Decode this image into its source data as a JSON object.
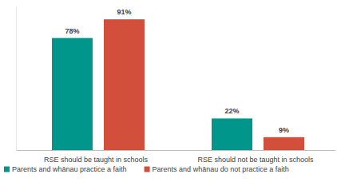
{
  "chart_data": {
    "type": "bar",
    "categories": [
      "RSE should be taught in schools",
      "RSE should not be taught in schools"
    ],
    "series": [
      {
        "name": "Parents and whānau practice a faith",
        "color": "#00968c",
        "values": [
          78,
          22
        ],
        "value_labels": [
          "78%",
          "22%"
        ]
      },
      {
        "name": "Parents and whānau do not practice a faith",
        "color": "#d24f3b",
        "values": [
          91,
          9
        ],
        "value_labels": [
          "91%",
          "9%"
        ]
      }
    ],
    "ylim": [
      0,
      100
    ],
    "data_labels": true,
    "tick_labels": "x",
    "legend": "bottom",
    "grid": false
  }
}
